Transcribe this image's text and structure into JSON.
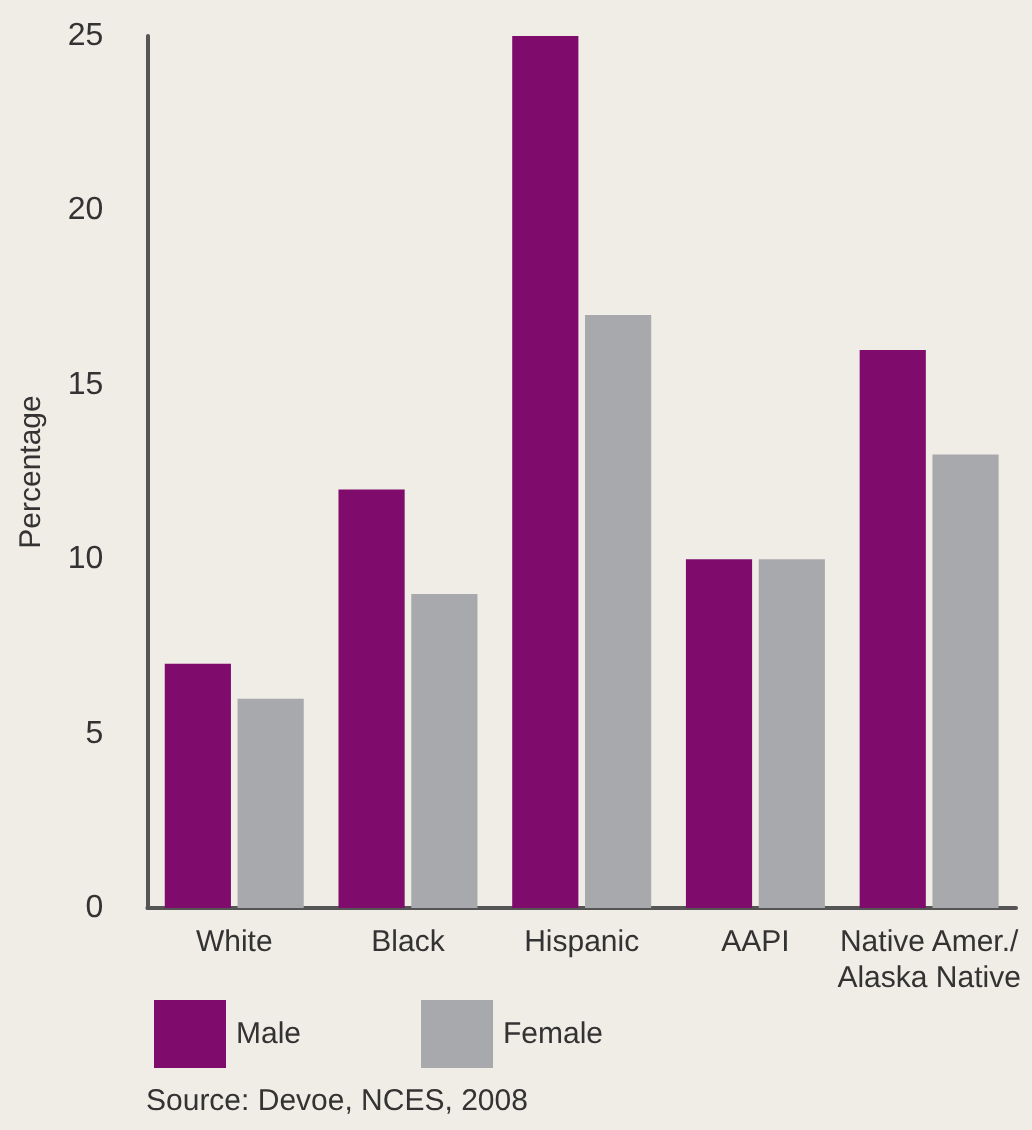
{
  "chart_data": {
    "type": "bar",
    "ylabel": "Percentage",
    "categories": [
      "White",
      "Black",
      "Hispanic",
      "AAPI",
      "Native Amer./\nAlaska Native"
    ],
    "series": [
      {
        "name": "Male",
        "color": "#7f0b6c",
        "values": [
          7,
          12,
          25,
          10,
          16
        ]
      },
      {
        "name": "Female",
        "color": "#a8a9ac",
        "values": [
          6,
          9,
          17,
          10,
          13
        ]
      }
    ],
    "ylim": [
      0,
      25
    ],
    "yticks": [
      0,
      5,
      10,
      15,
      20,
      25
    ],
    "grid": false,
    "legend": "bottom left",
    "annotations": [
      "Source: Devoe, NCES, 2008"
    ]
  }
}
